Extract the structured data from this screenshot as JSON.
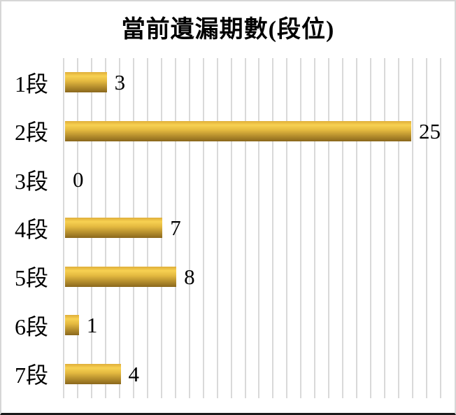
{
  "chart_data": {
    "type": "bar",
    "orientation": "horizontal",
    "title": "當前遺漏期數(段位)",
    "categories": [
      "1段",
      "2段",
      "3段",
      "4段",
      "5段",
      "6段",
      "7段"
    ],
    "values": [
      3,
      25,
      0,
      7,
      8,
      1,
      4
    ],
    "xlim": [
      0,
      27
    ],
    "gridline_interval": 1,
    "grid": true,
    "legend": false,
    "value_labels_shown": true
  },
  "style": {
    "background": "#ffffff",
    "text_color": "#000000",
    "gridline_color": "#d9d9d9",
    "bar_gradient": [
      "#dfae39",
      "#f7d152",
      "#e3b83f",
      "#8a671c"
    ],
    "frame_border_light": "#d6d6d6",
    "frame_border_dark": "#1a1a1a"
  }
}
